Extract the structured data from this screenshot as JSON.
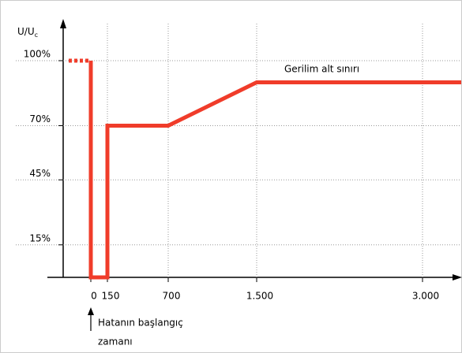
{
  "chart_data": {
    "type": "line",
    "y_label": "U/U",
    "y_label_sub": "c",
    "annotations": [
      "Gerilim alt sınırı",
      "Hatanın başlangıç",
      "zamanı"
    ],
    "xlim": [
      -400,
      3350
    ],
    "ylim": [
      0,
      100
    ],
    "xticks": [
      0,
      150,
      700,
      {
        "value": 1500,
        "label": "1.500"
      },
      {
        "value": 3000,
        "label": "3.000"
      }
    ],
    "yticks": [
      {
        "value": 15,
        "label": "15%"
      },
      {
        "value": 45,
        "label": "45%"
      },
      {
        "value": 70,
        "label": "70%"
      },
      {
        "value": 100,
        "label": "100%"
      }
    ],
    "grid": true,
    "series": [
      {
        "color": "#f03c2a",
        "dashed": true,
        "x": [
          -200,
          0
        ],
        "values": [
          100,
          100
        ]
      },
      {
        "color": "#f03c2a",
        "dashed": false,
        "x": [
          0,
          0,
          150,
          150,
          700,
          1500,
          3350
        ],
        "values": [
          100,
          0,
          0,
          70,
          70,
          90,
          90
        ]
      }
    ]
  }
}
